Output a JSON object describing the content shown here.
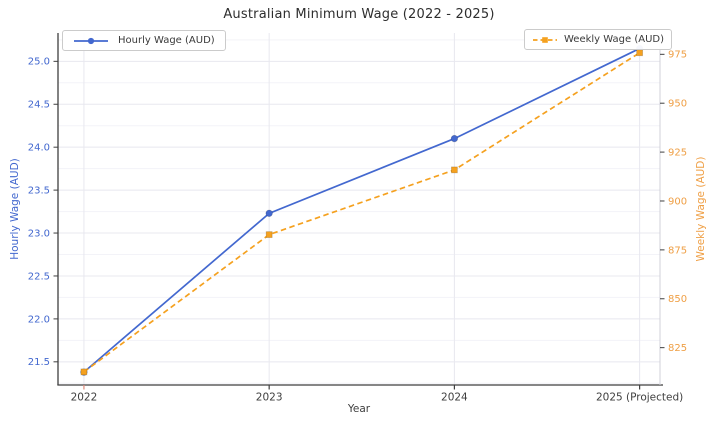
{
  "chart_data": {
    "type": "line",
    "title": "Australian Minimum Wage (2022 - 2025)",
    "xlabel": "Year",
    "x_categories": [
      "2022",
      "2023",
      "2024",
      "2025 (Projected)"
    ],
    "x_values": [
      2022,
      2023,
      2024,
      2025
    ],
    "xlim": [
      2021.86,
      2025.11
    ],
    "series": [
      {
        "name": "Hourly Wage (AUD)",
        "axis": "left",
        "color": "#4368cf",
        "line_style": "solid",
        "marker": "circle",
        "values": [
          21.38,
          23.23,
          24.1,
          25.15
        ]
      },
      {
        "name": "Weekly Wage (AUD)",
        "axis": "right",
        "color": "#f5a11f",
        "line_style": "dashed",
        "marker": "square",
        "values": [
          812.6,
          882.8,
          915.9,
          975.8
        ]
      }
    ],
    "axes": {
      "left": {
        "label": "Hourly Wage (AUD)",
        "color": "#4368cf",
        "ticks": [
          21.5,
          22.0,
          22.5,
          23.0,
          23.5,
          24.0,
          24.5,
          25.0
        ],
        "range": [
          21.23,
          25.33
        ],
        "decimals": 1
      },
      "right": {
        "label": "Weekly Wage (AUD)",
        "color": "#ef9f45",
        "ticks": [
          825,
          850,
          875,
          900,
          925,
          950,
          975
        ],
        "range": [
          805.9,
          985.9
        ],
        "decimals": 0
      }
    },
    "grid": {
      "major": true,
      "minor": true,
      "legend_positions": [
        "upper-left",
        "upper-right"
      ]
    },
    "style": {
      "grid_major_color": "#e8e8ef",
      "grid_minor_color": "#f3f3f8",
      "spine_dark_color": "#3f3f3f",
      "spine_light_color": "#d0d0d8",
      "tick_text_color": "#3f3f3f",
      "first_xtick_color": "#e08a7a"
    }
  }
}
